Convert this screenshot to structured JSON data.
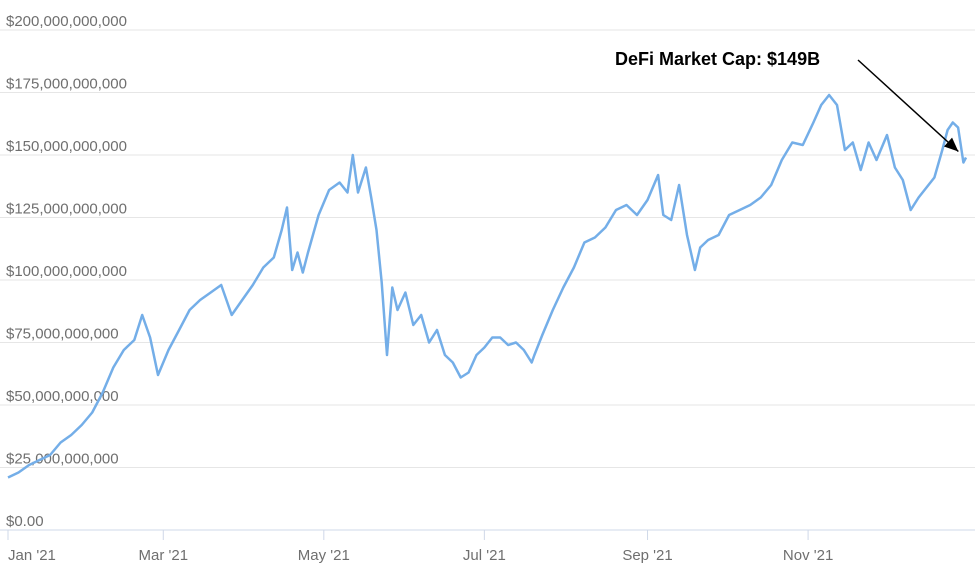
{
  "colors": {
    "line": "#74aee8",
    "grid": "#e6e6e6",
    "axis": "#cfd8e8",
    "tick_text": "#6f6f6f",
    "annotation": "#000000"
  },
  "chart_data": {
    "type": "line",
    "title": "",
    "xlabel": "",
    "ylabel": "",
    "ylim": [
      0,
      200000000000
    ],
    "y_ticks": [
      "$0.00",
      "$25,000,000,000",
      "$50,000,000,000",
      "$75,000,000,000",
      "$100,000,000,000",
      "$125,000,000,000",
      "$150,000,000,000",
      "$175,000,000,000",
      "$200,000,000,000"
    ],
    "x_ticks": [
      "Jan '21",
      "Mar '21",
      "May '21",
      "Jul '21",
      "Sep '21",
      "Nov '21"
    ],
    "x_tick_dates": [
      "2021-01-01",
      "2021-03-01",
      "2021-05-01",
      "2021-07-01",
      "2021-09-01",
      "2021-11-01"
    ],
    "xlim": [
      "2021-01-01",
      "2021-12-31"
    ],
    "grid": true,
    "annotation": {
      "text": "DeFi Market Cap: $149B",
      "date": "2021-12-30",
      "value": 149000000000
    },
    "series": [
      {
        "dates": [
          "2021-01-01",
          "2021-01-05",
          "2021-01-09",
          "2021-01-13",
          "2021-01-17",
          "2021-01-21",
          "2021-01-25",
          "2021-01-29",
          "2021-02-02",
          "2021-02-06",
          "2021-02-10",
          "2021-02-14",
          "2021-02-18",
          "2021-02-21",
          "2021-02-24",
          "2021-02-27",
          "2021-03-03",
          "2021-03-07",
          "2021-03-11",
          "2021-03-15",
          "2021-03-19",
          "2021-03-23",
          "2021-03-27",
          "2021-03-31",
          "2021-04-04",
          "2021-04-08",
          "2021-04-12",
          "2021-04-15",
          "2021-04-17",
          "2021-04-19",
          "2021-04-21",
          "2021-04-23",
          "2021-04-25",
          "2021-04-29",
          "2021-05-03",
          "2021-05-07",
          "2021-05-10",
          "2021-05-12",
          "2021-05-14",
          "2021-05-17",
          "2021-05-19",
          "2021-05-21",
          "2021-05-23",
          "2021-05-25",
          "2021-05-27",
          "2021-05-29",
          "2021-06-01",
          "2021-06-04",
          "2021-06-07",
          "2021-06-10",
          "2021-06-13",
          "2021-06-16",
          "2021-06-19",
          "2021-06-22",
          "2021-06-25",
          "2021-06-28",
          "2021-07-01",
          "2021-07-04",
          "2021-07-07",
          "2021-07-10",
          "2021-07-13",
          "2021-07-16",
          "2021-07-19",
          "2021-07-20",
          "2021-07-23",
          "2021-07-27",
          "2021-07-31",
          "2021-08-04",
          "2021-08-08",
          "2021-08-12",
          "2021-08-16",
          "2021-08-20",
          "2021-08-24",
          "2021-08-28",
          "2021-09-01",
          "2021-09-05",
          "2021-09-07",
          "2021-09-10",
          "2021-09-13",
          "2021-09-16",
          "2021-09-19",
          "2021-09-21",
          "2021-09-24",
          "2021-09-28",
          "2021-10-02",
          "2021-10-06",
          "2021-10-10",
          "2021-10-14",
          "2021-10-18",
          "2021-10-22",
          "2021-10-26",
          "2021-10-30",
          "2021-11-03",
          "2021-11-06",
          "2021-11-09",
          "2021-11-12",
          "2021-11-15",
          "2021-11-18",
          "2021-11-21",
          "2021-11-24",
          "2021-11-27",
          "2021-12-01",
          "2021-12-04",
          "2021-12-07",
          "2021-12-10",
          "2021-12-13",
          "2021-12-16",
          "2021-12-19",
          "2021-12-22",
          "2021-12-24",
          "2021-12-26",
          "2021-12-28",
          "2021-12-30",
          "2021-12-31"
        ],
        "values": [
          21000000000,
          23000000000,
          26000000000,
          28000000000,
          30000000000,
          35000000000,
          38000000000,
          42000000000,
          47000000000,
          55000000000,
          65000000000,
          72000000000,
          76000000000,
          86000000000,
          77000000000,
          62000000000,
          72000000000,
          80000000000,
          88000000000,
          92000000000,
          95000000000,
          98000000000,
          86000000000,
          92000000000,
          98000000000,
          105000000000,
          109000000000,
          120000000000,
          129000000000,
          104000000000,
          111000000000,
          103000000000,
          111000000000,
          126000000000,
          136000000000,
          139000000000,
          135000000000,
          150000000000,
          135000000000,
          145000000000,
          133000000000,
          120000000000,
          99000000000,
          70000000000,
          97000000000,
          88000000000,
          95000000000,
          82000000000,
          86000000000,
          75000000000,
          80000000000,
          70000000000,
          67000000000,
          61000000000,
          63000000000,
          70000000000,
          73000000000,
          77000000000,
          77000000000,
          74000000000,
          75000000000,
          72000000000,
          67000000000,
          70000000000,
          78000000000,
          88000000000,
          97000000000,
          105000000000,
          115000000000,
          117000000000,
          121000000000,
          128000000000,
          130000000000,
          126000000000,
          132000000000,
          142000000000,
          126000000000,
          124000000000,
          138000000000,
          118000000000,
          104000000000,
          113000000000,
          116000000000,
          118000000000,
          126000000000,
          128000000000,
          130000000000,
          133000000000,
          138000000000,
          148000000000,
          155000000000,
          154000000000,
          163000000000,
          170000000000,
          174000000000,
          170000000000,
          152000000000,
          155000000000,
          144000000000,
          155000000000,
          148000000000,
          158000000000,
          145000000000,
          140000000000,
          128000000000,
          133000000000,
          137000000000,
          141000000000,
          152000000000,
          160000000000,
          163000000000,
          161000000000,
          147000000000,
          149000000000
        ]
      }
    ]
  }
}
